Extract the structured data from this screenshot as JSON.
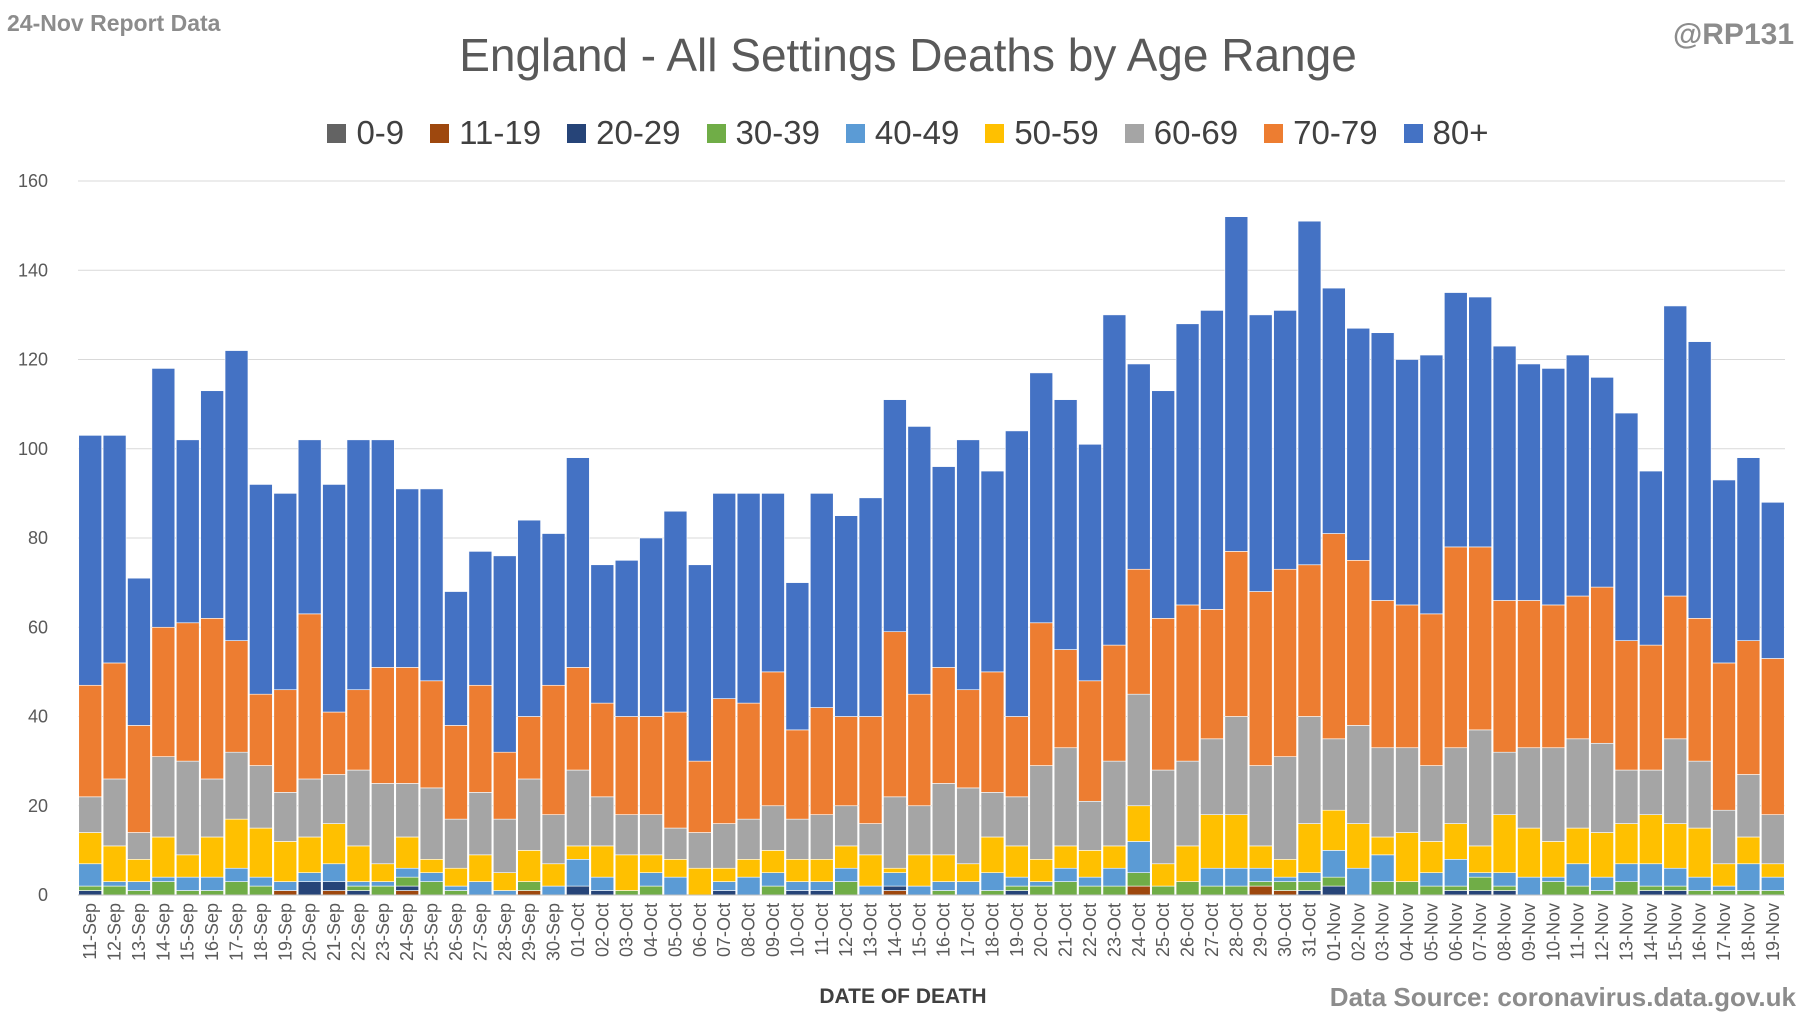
{
  "header": {
    "report_label": "24-Nov Report Data",
    "handle": "@RP131"
  },
  "footer": {
    "source": "Data Source: coronavirus.data.gov.uk"
  },
  "chart_data": {
    "type": "bar",
    "stacked": true,
    "title": "England - All Settings Deaths by Age Range",
    "xlabel": "DATE OF DEATH",
    "ylabel": "",
    "ylim": [
      0,
      160
    ],
    "yticks": [
      0,
      20,
      40,
      60,
      80,
      100,
      120,
      140,
      160
    ],
    "grid": true,
    "legend_position": "top",
    "categories": [
      "11-Sep",
      "12-Sep",
      "13-Sep",
      "14-Sep",
      "15-Sep",
      "16-Sep",
      "17-Sep",
      "18-Sep",
      "19-Sep",
      "20-Sep",
      "21-Sep",
      "22-Sep",
      "23-Sep",
      "24-Sep",
      "25-Sep",
      "26-Sep",
      "27-Sep",
      "28-Sep",
      "29-Sep",
      "30-Sep",
      "01-Oct",
      "02-Oct",
      "03-Oct",
      "04-Oct",
      "05-Oct",
      "06-Oct",
      "07-Oct",
      "08-Oct",
      "09-Oct",
      "10-Oct",
      "11-Oct",
      "12-Oct",
      "13-Oct",
      "14-Oct",
      "15-Oct",
      "16-Oct",
      "17-Oct",
      "18-Oct",
      "19-Oct",
      "20-Oct",
      "21-Oct",
      "22-Oct",
      "23-Oct",
      "24-Oct",
      "25-Oct",
      "26-Oct",
      "27-Oct",
      "28-Oct",
      "29-Oct",
      "30-Oct",
      "31-Oct",
      "01-Nov",
      "02-Nov",
      "03-Nov",
      "04-Nov",
      "05-Nov",
      "06-Nov",
      "07-Nov",
      "08-Nov",
      "09-Nov",
      "10-Nov",
      "11-Nov",
      "12-Nov",
      "13-Nov",
      "14-Nov",
      "15-Nov",
      "16-Nov",
      "17-Nov",
      "18-Nov",
      "19-Nov"
    ],
    "series": [
      {
        "name": "0-9",
        "color": "#636363",
        "values": [
          0,
          0,
          0,
          0,
          0,
          0,
          0,
          0,
          0,
          0,
          0,
          0,
          0,
          0,
          0,
          0,
          0,
          0,
          0,
          0,
          0,
          0,
          0,
          0,
          0,
          0,
          0,
          0,
          0,
          0,
          0,
          0,
          0,
          0,
          0,
          0,
          0,
          0,
          0,
          0,
          0,
          0,
          0,
          0,
          0,
          0,
          0,
          0,
          0,
          0,
          0,
          0,
          0,
          0,
          0,
          0,
          0,
          0,
          0,
          0,
          0,
          0,
          0,
          0,
          0,
          0,
          0,
          0,
          0,
          0
        ]
      },
      {
        "name": "11-19",
        "color": "#9e480e",
        "values": [
          0,
          0,
          0,
          0,
          0,
          0,
          0,
          0,
          1,
          0,
          1,
          0,
          0,
          1,
          0,
          0,
          0,
          0,
          1,
          0,
          0,
          0,
          0,
          0,
          0,
          0,
          0,
          0,
          0,
          0,
          0,
          0,
          0,
          1,
          0,
          0,
          0,
          0,
          0,
          0,
          0,
          0,
          0,
          2,
          0,
          0,
          0,
          0,
          2,
          1,
          0,
          0,
          0,
          0,
          0,
          0,
          0,
          0,
          0,
          0,
          0,
          0,
          0,
          0,
          0,
          0,
          0,
          0,
          0,
          0
        ]
      },
      {
        "name": "20-29",
        "color": "#264478",
        "values": [
          1,
          0,
          0,
          0,
          0,
          0,
          0,
          0,
          0,
          3,
          2,
          1,
          0,
          1,
          0,
          0,
          0,
          0,
          0,
          0,
          2,
          1,
          0,
          0,
          0,
          0,
          1,
          0,
          0,
          1,
          1,
          0,
          0,
          1,
          0,
          0,
          0,
          0,
          1,
          0,
          0,
          0,
          0,
          0,
          0,
          0,
          0,
          0,
          0,
          0,
          1,
          2,
          0,
          0,
          0,
          0,
          1,
          1,
          1,
          0,
          0,
          0,
          0,
          0,
          1,
          1,
          0,
          0,
          0,
          0
        ]
      },
      {
        "name": "30-39",
        "color": "#70ad47",
        "values": [
          1,
          2,
          1,
          3,
          1,
          1,
          3,
          2,
          0,
          0,
          0,
          1,
          2,
          2,
          3,
          1,
          0,
          0,
          2,
          0,
          0,
          0,
          1,
          2,
          0,
          0,
          0,
          0,
          2,
          0,
          0,
          3,
          0,
          0,
          0,
          1,
          0,
          1,
          1,
          2,
          3,
          2,
          2,
          3,
          2,
          3,
          2,
          2,
          1,
          2,
          2,
          2,
          0,
          3,
          3,
          2,
          1,
          3,
          1,
          0,
          3,
          2,
          1,
          3,
          1,
          1,
          1,
          1,
          1,
          1
        ]
      },
      {
        "name": "40-49",
        "color": "#5b9bd5",
        "values": [
          5,
          1,
          2,
          1,
          3,
          3,
          3,
          2,
          2,
          2,
          4,
          1,
          1,
          2,
          2,
          1,
          3,
          1,
          0,
          2,
          6,
          3,
          0,
          3,
          4,
          0,
          2,
          4,
          3,
          2,
          2,
          3,
          2,
          3,
          2,
          2,
          3,
          4,
          2,
          1,
          3,
          2,
          4,
          7,
          0,
          0,
          4,
          4,
          3,
          1,
          2,
          6,
          6,
          6,
          0,
          3,
          6,
          1,
          3,
          4,
          1,
          5,
          3,
          4,
          5,
          4,
          3,
          1,
          6,
          3
        ]
      },
      {
        "name": "50-59",
        "color": "#ffc000",
        "values": [
          7,
          8,
          5,
          9,
          5,
          9,
          11,
          11,
          9,
          8,
          9,
          8,
          4,
          7,
          3,
          4,
          6,
          4,
          7,
          5,
          3,
          7,
          8,
          4,
          4,
          6,
          3,
          4,
          5,
          5,
          5,
          5,
          7,
          1,
          7,
          6,
          4,
          8,
          7,
          5,
          5,
          6,
          5,
          8,
          5,
          8,
          12,
          12,
          5,
          4,
          11,
          9,
          10,
          4,
          11,
          7,
          8,
          6,
          13,
          11,
          8,
          8,
          10,
          9,
          11,
          10,
          11,
          5,
          6,
          3
        ]
      },
      {
        "name": "60-69",
        "color": "#a5a5a5",
        "values": [
          8,
          15,
          6,
          18,
          21,
          13,
          15,
          14,
          11,
          13,
          11,
          17,
          18,
          12,
          16,
          11,
          14,
          12,
          16,
          11,
          17,
          11,
          9,
          9,
          7,
          8,
          10,
          9,
          10,
          9,
          10,
          9,
          7,
          16,
          11,
          16,
          17,
          10,
          11,
          21,
          22,
          11,
          19,
          25,
          21,
          19,
          17,
          22,
          18,
          23,
          24,
          16,
          22,
          20,
          19,
          17,
          17,
          26,
          14,
          18,
          21,
          20,
          20,
          12,
          10,
          19,
          15,
          12,
          14,
          11
        ]
      },
      {
        "name": "70-79",
        "color": "#ed7d31",
        "values": [
          25,
          26,
          24,
          29,
          31,
          36,
          25,
          16,
          23,
          37,
          14,
          18,
          26,
          26,
          24,
          21,
          24,
          15,
          14,
          29,
          23,
          21,
          22,
          22,
          26,
          16,
          28,
          26,
          30,
          20,
          24,
          20,
          24,
          37,
          25,
          26,
          22,
          27,
          18,
          32,
          22,
          27,
          26,
          28,
          34,
          35,
          29,
          37,
          39,
          42,
          34,
          46,
          37,
          33,
          32,
          34,
          45,
          41,
          34,
          33,
          32,
          32,
          35,
          29,
          28,
          32,
          32,
          33,
          30,
          35
        ]
      },
      {
        "name": "80+",
        "color": "#4472c4",
        "values": [
          56,
          51,
          33,
          58,
          41,
          51,
          65,
          47,
          44,
          39,
          51,
          56,
          51,
          40,
          43,
          30,
          30,
          44,
          44,
          34,
          47,
          31,
          35,
          40,
          45,
          44,
          46,
          47,
          40,
          33,
          48,
          45,
          49,
          52,
          60,
          45,
          56,
          45,
          64,
          56,
          56,
          53,
          74,
          46,
          51,
          63,
          67,
          75,
          62,
          58,
          77,
          55,
          52,
          60,
          55,
          58,
          57,
          56,
          57,
          53,
          53,
          54,
          47,
          51,
          39,
          65,
          62,
          41,
          41,
          35
        ]
      }
    ]
  }
}
